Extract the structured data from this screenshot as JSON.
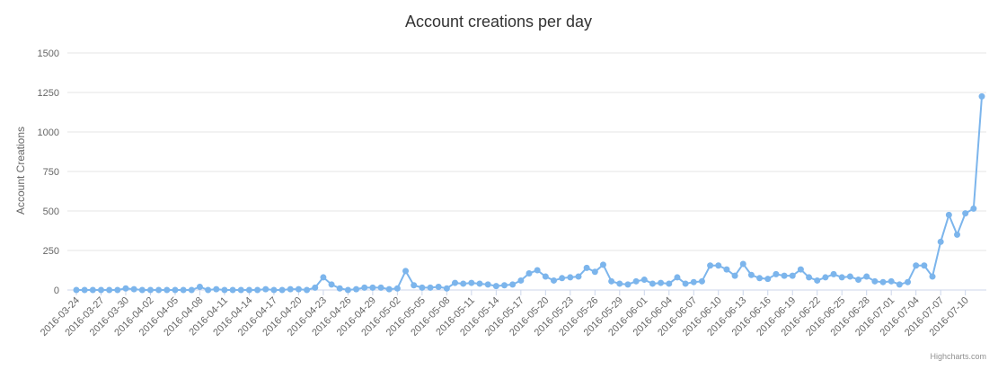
{
  "credits": "Highcharts.com",
  "chart_data": {
    "type": "line",
    "title": "Account creations per day",
    "xlabel": "",
    "ylabel": "Account Creations",
    "ylim": [
      0,
      1500
    ],
    "y_ticks": [
      "0",
      "250",
      "500",
      "750",
      "1000",
      "1250",
      "1500"
    ],
    "grid": true,
    "legend": "none",
    "x_tick_labels": [
      "2016-03-24",
      "2016-03-27",
      "2016-03-30",
      "2016-04-02",
      "2016-04-05",
      "2016-04-08",
      "2016-04-11",
      "2016-04-14",
      "2016-04-17",
      "2016-04-20",
      "2016-04-23",
      "2016-04-26",
      "2016-04-29",
      "2016-05-02",
      "2016-05-05",
      "2016-05-08",
      "2016-05-11",
      "2016-05-14",
      "2016-05-17",
      "2016-05-20",
      "2016-05-23",
      "2016-05-26",
      "2016-05-29",
      "2016-06-01",
      "2016-06-04",
      "2016-06-07",
      "2016-06-10",
      "2016-06-13",
      "2016-06-16",
      "2016-06-19",
      "2016-06-22",
      "2016-06-25",
      "2016-06-28",
      "2016-07-01",
      "2016-07-04",
      "2016-07-07",
      "2016-07-10"
    ],
    "x_start": "2016-03-24",
    "colors": {
      "series": "#7cb5ec",
      "grid": "#e6e6e6",
      "axis": "#ccd6eb"
    },
    "values": [
      0,
      0,
      0,
      0,
      0,
      0,
      10,
      5,
      0,
      0,
      0,
      0,
      0,
      0,
      0,
      20,
      0,
      5,
      0,
      0,
      0,
      0,
      0,
      5,
      0,
      0,
      5,
      5,
      0,
      15,
      80,
      35,
      10,
      0,
      5,
      15,
      15,
      15,
      5,
      10,
      120,
      30,
      15,
      15,
      20,
      10,
      45,
      40,
      45,
      40,
      35,
      25,
      30,
      35,
      60,
      105,
      125,
      85,
      60,
      75,
      80,
      85,
      140,
      115,
      160,
      55,
      40,
      35,
      55,
      65,
      40,
      45,
      40,
      80,
      40,
      50,
      55,
      155,
      155,
      130,
      90,
      165,
      95,
      75,
      70,
      100,
      90,
      90,
      130,
      80,
      60,
      80,
      100,
      80,
      85,
      65,
      85,
      55,
      50,
      55,
      35,
      50,
      155,
      155,
      85,
      305,
      475,
      350,
      485,
      515,
      1225
    ]
  }
}
